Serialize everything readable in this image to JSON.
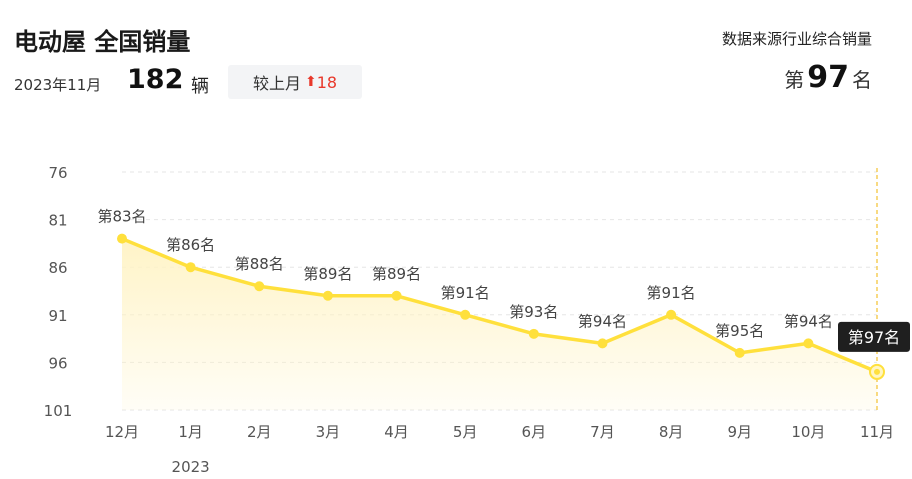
{
  "header": {
    "title": "电动屋 全国销量",
    "source": "数据来源行业综合销量",
    "date": "2023年11月",
    "sales_value": "182",
    "sales_unit": "辆",
    "compare_label": "较上月",
    "compare_delta": "18",
    "rank_prefix": "第",
    "rank_value": "97",
    "rank_suffix": "名"
  },
  "colors": {
    "line": "#ffe03c",
    "area_top": "#fff3c4",
    "tooltip_bg": "#1f1f1f",
    "up_arrow": "#e8382b"
  },
  "chart_data": {
    "type": "line",
    "title": "",
    "x": [
      "12月",
      "1月",
      "2月",
      "3月",
      "4月",
      "5月",
      "6月",
      "7月",
      "8月",
      "9月",
      "10月",
      "11月"
    ],
    "x_sublabel": {
      "index": 1,
      "text": "2023"
    },
    "series": [
      {
        "values": [
          83,
          86,
          88,
          89,
          89,
          91,
          93,
          94,
          91,
          95,
          94,
          97
        ]
      }
    ],
    "point_labels": [
      "第83名",
      "第86名",
      "第88名",
      "第89名",
      "第89名",
      "第91名",
      "第93名",
      "第94名",
      "第91名",
      "第95名",
      "第94名",
      "第97名"
    ],
    "yticks": [
      76,
      81,
      86,
      91,
      96,
      101
    ],
    "ylim": [
      76,
      101
    ],
    "y_inverted": true,
    "highlight_index": 11,
    "grid": true,
    "legend": "none"
  }
}
